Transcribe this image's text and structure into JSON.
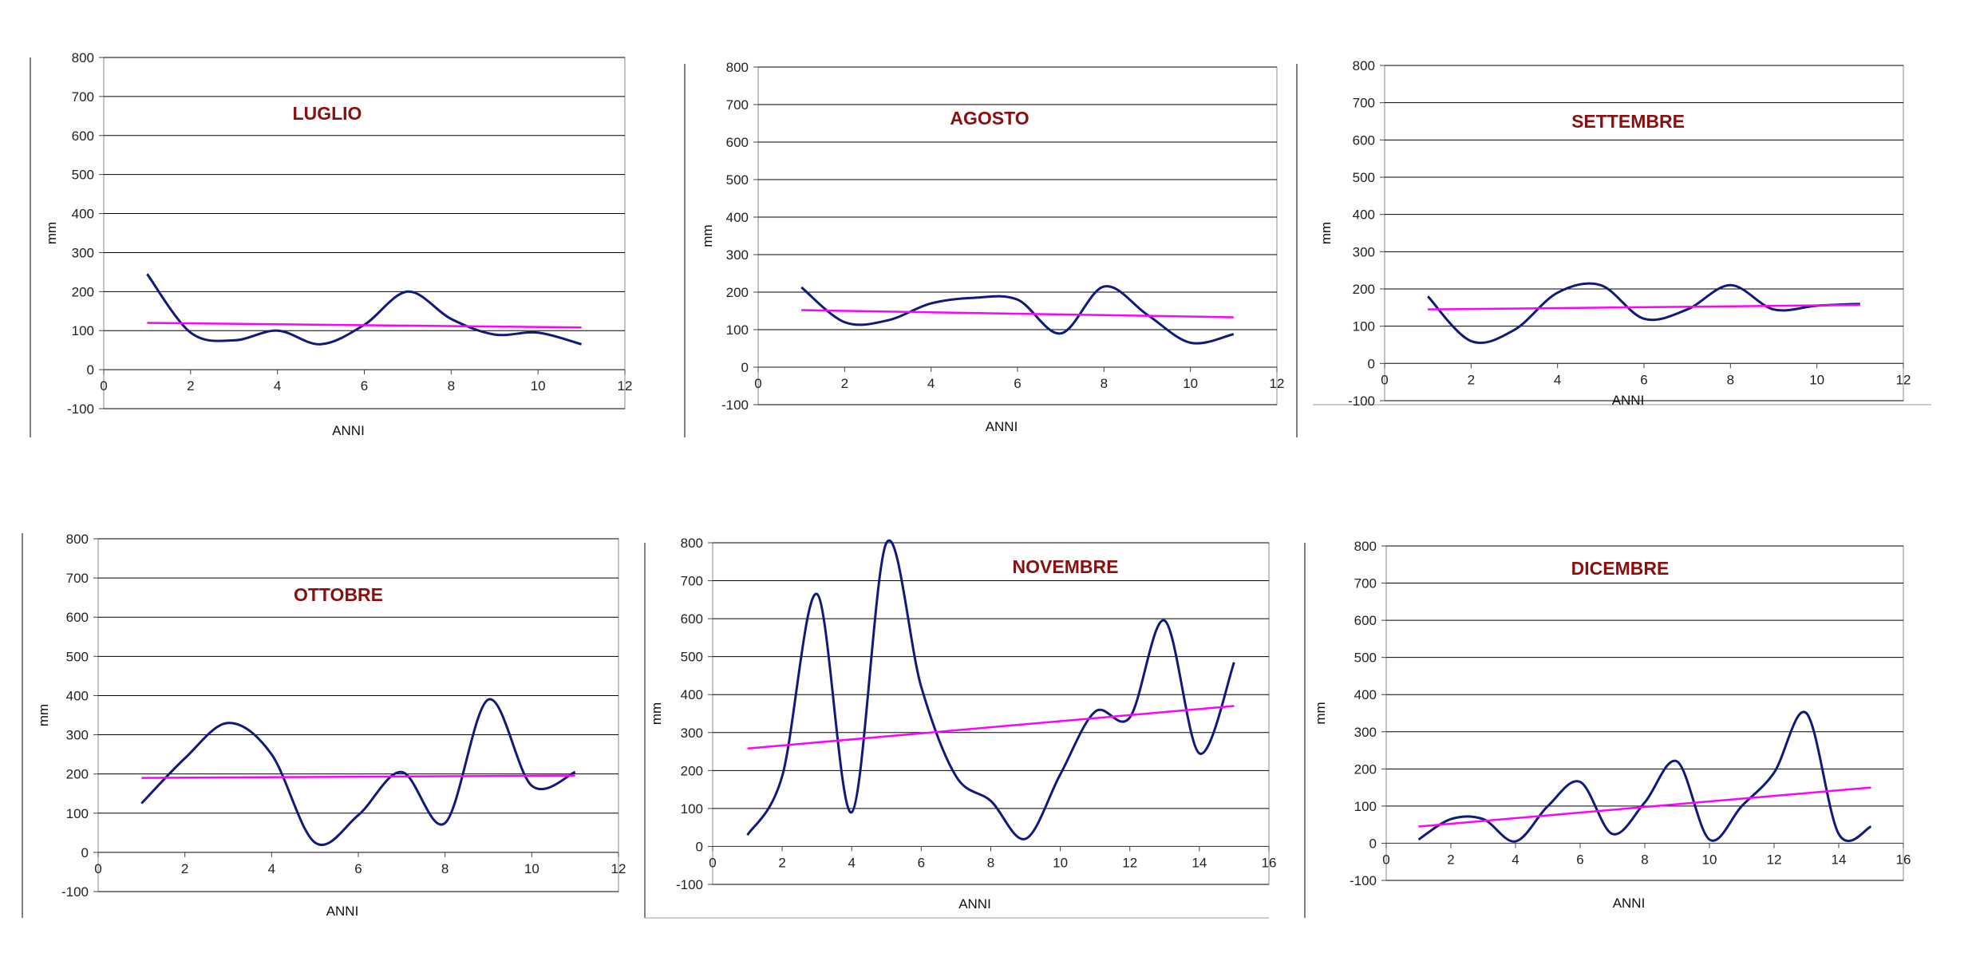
{
  "colors": {
    "series": "#101a7a",
    "trend": "#ff00ff",
    "title": "#8b0f0f",
    "grid": "#000000"
  },
  "chart_data": [
    {
      "type": "line",
      "title": "LUGLIO",
      "xlabel": "ANNI",
      "ylabel": "mm",
      "xlim": [
        0,
        12
      ],
      "xticks": [
        0,
        2,
        4,
        6,
        8,
        10,
        12
      ],
      "ylim": [
        -100,
        800
      ],
      "yticks": [
        -100,
        0,
        100,
        200,
        300,
        400,
        500,
        600,
        700,
        800
      ],
      "grid": true,
      "legend": "none",
      "series": [
        {
          "x": [
            1,
            2,
            3,
            4,
            5,
            6,
            7,
            8,
            9,
            10,
            11
          ],
          "values": [
            245,
            95,
            75,
            100,
            65,
            115,
            200,
            130,
            90,
            95,
            65
          ]
        },
        {
          "x": [
            1,
            11
          ],
          "values": [
            120,
            108
          ]
        }
      ]
    },
    {
      "type": "line",
      "title": "AGOSTO",
      "xlabel": "ANNI",
      "ylabel": "mm",
      "xlim": [
        0,
        12
      ],
      "xticks": [
        0,
        2,
        4,
        6,
        8,
        10,
        12
      ],
      "ylim": [
        -100,
        800
      ],
      "yticks": [
        -100,
        0,
        100,
        200,
        300,
        400,
        500,
        600,
        700,
        800
      ],
      "grid": true,
      "legend": "none",
      "series": [
        {
          "x": [
            1,
            2,
            3,
            4,
            5,
            6,
            7,
            8,
            9,
            10,
            11
          ],
          "values": [
            213,
            120,
            125,
            170,
            185,
            180,
            90,
            215,
            140,
            65,
            88
          ]
        },
        {
          "x": [
            1,
            11
          ],
          "values": [
            152,
            133
          ]
        }
      ]
    },
    {
      "type": "line",
      "title": "SETTEMBRE",
      "xlabel": "ANNI",
      "ylabel": "mm",
      "xlim": [
        0,
        12
      ],
      "xticks": [
        0,
        2,
        4,
        6,
        8,
        10,
        12
      ],
      "ylim": [
        -100,
        800
      ],
      "yticks": [
        -100,
        0,
        100,
        200,
        300,
        400,
        500,
        600,
        700,
        800
      ],
      "grid": true,
      "legend": "none",
      "series": [
        {
          "x": [
            1,
            2,
            3,
            4,
            5,
            6,
            7,
            8,
            9,
            10,
            11
          ],
          "values": [
            180,
            60,
            90,
            190,
            210,
            120,
            145,
            210,
            145,
            155,
            160
          ]
        },
        {
          "x": [
            1,
            11
          ],
          "values": [
            145,
            157
          ]
        }
      ]
    },
    {
      "type": "line",
      "title": "OTTOBRE",
      "xlabel": "ANNI",
      "ylabel": "mm",
      "xlim": [
        0,
        12
      ],
      "xticks": [
        0,
        2,
        4,
        6,
        8,
        10,
        12
      ],
      "ylim": [
        -100,
        800
      ],
      "yticks": [
        -100,
        0,
        100,
        200,
        300,
        400,
        500,
        600,
        700,
        800
      ],
      "grid": true,
      "legend": "none",
      "series": [
        {
          "x": [
            1,
            2,
            3,
            4,
            5,
            6,
            7,
            8,
            9,
            10,
            11
          ],
          "values": [
            125,
            240,
            330,
            250,
            25,
            95,
            205,
            75,
            390,
            170,
            205
          ]
        },
        {
          "x": [
            1,
            11
          ],
          "values": [
            190,
            196
          ]
        }
      ]
    },
    {
      "type": "line",
      "title": "NOVEMBRE",
      "xlabel": "ANNI",
      "ylabel": "mm",
      "xlim": [
        0,
        16
      ],
      "xticks": [
        0,
        2,
        4,
        6,
        8,
        10,
        12,
        14,
        16
      ],
      "ylim": [
        -100,
        800
      ],
      "yticks": [
        -100,
        0,
        100,
        200,
        300,
        400,
        500,
        600,
        700,
        800
      ],
      "grid": true,
      "legend": "none",
      "series": [
        {
          "x": [
            1,
            2,
            3,
            4,
            5,
            6,
            7,
            8,
            9,
            10,
            11,
            12,
            13,
            14,
            15
          ],
          "values": [
            30,
            185,
            665,
            90,
            800,
            420,
            185,
            120,
            20,
            190,
            355,
            340,
            595,
            245,
            485
          ]
        },
        {
          "x": [
            1,
            15
          ],
          "values": [
            258,
            370
          ]
        }
      ]
    },
    {
      "type": "line",
      "title": "DICEMBRE",
      "xlabel": "ANNI",
      "ylabel": "mm",
      "xlim": [
        0,
        16
      ],
      "xticks": [
        0,
        2,
        4,
        6,
        8,
        10,
        12,
        14,
        16
      ],
      "ylim": [
        -100,
        800
      ],
      "yticks": [
        -100,
        0,
        100,
        200,
        300,
        400,
        500,
        600,
        700,
        800
      ],
      "grid": true,
      "legend": "none",
      "series": [
        {
          "x": [
            1,
            2,
            3,
            4,
            5,
            6,
            7,
            8,
            9,
            10,
            11,
            12,
            13,
            14,
            15
          ],
          "values": [
            10,
            65,
            65,
            5,
            100,
            165,
            25,
            110,
            220,
            10,
            100,
            190,
            350,
            25,
            45
          ]
        },
        {
          "x": [
            1,
            15
          ],
          "values": [
            45,
            150
          ]
        }
      ]
    }
  ]
}
